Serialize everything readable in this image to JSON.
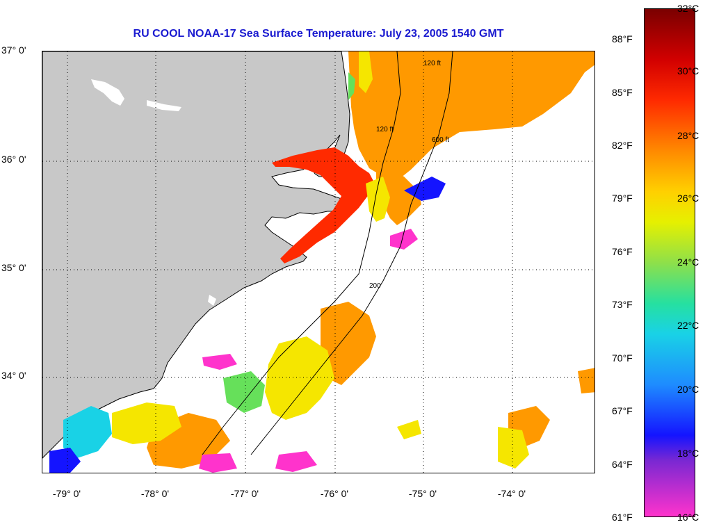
{
  "title": "RU COOL  NOAA-17  Sea Surface Temperature:  July 23, 2005 1540 GMT",
  "latitude_labels": [
    "37° 0'",
    "36° 0'",
    "35° 0'",
    "34° 0'"
  ],
  "longitude_labels": [
    "-79° 0'",
    "-78° 0'",
    "-77° 0'",
    "-76° 0'",
    "-75° 0'",
    "-74° 0'"
  ],
  "celsius_labels": [
    "32°C",
    "30°C",
    "28°C",
    "26°C",
    "24°C",
    "22°C",
    "20°C",
    "18°C",
    "16°C"
  ],
  "fahrenheit_labels": [
    "88°F",
    "85°F",
    "82°F",
    "79°F",
    "76°F",
    "73°F",
    "70°F",
    "67°F",
    "64°F",
    "61°F"
  ],
  "contours": [
    "120 ft",
    "600 ft",
    "200",
    "120 ft"
  ],
  "colors": {
    "title": "#1a1ad0",
    "land": "#c8c8c8",
    "hot": "#ff2a00",
    "warm": "#ff9900",
    "mild": "#f5e600",
    "cool": "#19d2e6",
    "cold": "#1414ff",
    "coldest": "#ff33cc"
  }
}
